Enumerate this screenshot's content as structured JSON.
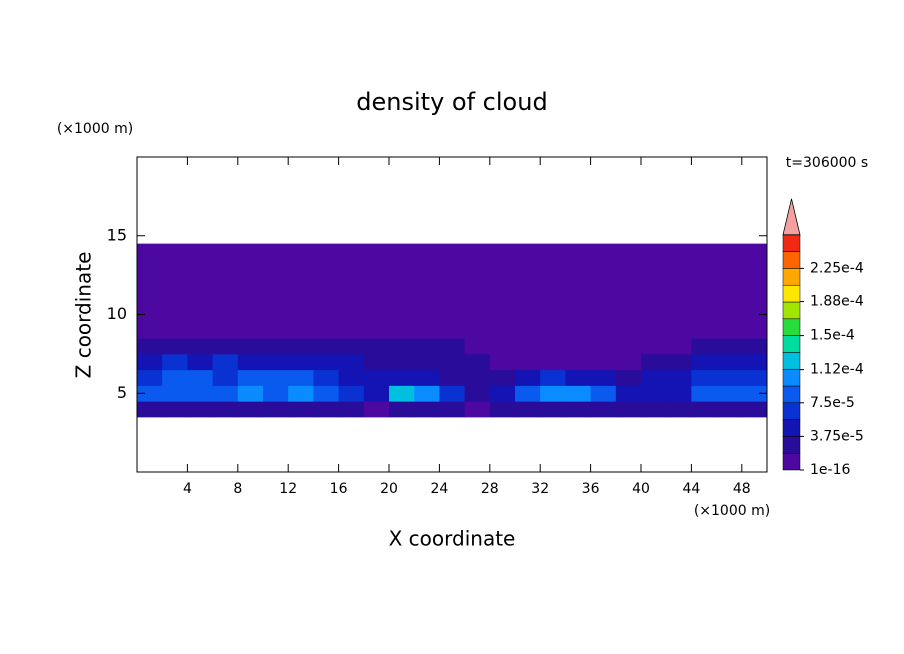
{
  "chart_data": {
    "type": "contour",
    "title": "density of cloud",
    "x_label": "X coordinate",
    "y_label": "Z coordinate",
    "x_unit": "(×1000 m)",
    "y_unit": "(×1000 m)",
    "time_label": "t=306000 s",
    "xlim": [
      0,
      50
    ],
    "ylim": [
      0,
      20
    ],
    "xticks": [
      4,
      8,
      12,
      16,
      20,
      24,
      28,
      32,
      36,
      40,
      44,
      48
    ],
    "yticks": [
      5,
      10,
      15
    ],
    "x": [
      1,
      3,
      5,
      7,
      9,
      11,
      13,
      15,
      17,
      19,
      21,
      23,
      25,
      27,
      29,
      31,
      33,
      35,
      37,
      39,
      41,
      43,
      45,
      47,
      49
    ],
    "z": [
      4,
      5,
      6,
      7,
      8,
      9,
      10,
      11,
      12,
      13,
      14
    ],
    "values": [
      [
        2.5e-05,
        2.5e-05,
        3e-05,
        2.5e-05,
        3e-05,
        3e-05,
        2.5e-05,
        2.5e-05,
        2e-05,
        1.5e-05,
        2.5e-05,
        2.5e-05,
        2e-05,
        1.5e-05,
        2e-05,
        2.5e-05,
        3e-05,
        2.5e-05,
        2.5e-05,
        2e-05,
        2e-05,
        2.5e-05,
        3e-05,
        2.5e-05,
        2.5e-05
      ],
      [
        8e-05,
        9e-05,
        8e-05,
        9e-05,
        0.0001,
        9e-05,
        0.000105,
        9e-05,
        6e-05,
        4e-05,
        0.000115,
        0.0001,
        6e-05,
        3e-05,
        4e-05,
        8e-05,
        9.5e-05,
        0.0001,
        8e-05,
        5e-05,
        4e-05,
        5e-05,
        9e-05,
        8e-05,
        8.5e-05
      ],
      [
        7e-05,
        8e-05,
        7.5e-05,
        7e-05,
        8e-05,
        8.5e-05,
        7.5e-05,
        6.5e-05,
        5e-05,
        4e-05,
        4.5e-05,
        4e-05,
        3.5e-05,
        3e-05,
        3e-05,
        5e-05,
        6e-05,
        5e-05,
        4e-05,
        3.5e-05,
        4e-05,
        5e-05,
        6.5e-05,
        6e-05,
        7e-05
      ],
      [
        5.5e-05,
        6e-05,
        5.5e-05,
        6e-05,
        5.5e-05,
        5e-05,
        5.5e-05,
        5e-05,
        4e-05,
        3.5e-05,
        3e-05,
        3e-05,
        2.5e-05,
        2e-05,
        1.5e-05,
        1.5e-05,
        1.5e-05,
        1.5e-05,
        1.5e-05,
        1.5e-05,
        2e-05,
        3e-05,
        4e-05,
        4.5e-05,
        5e-05
      ],
      [
        3e-05,
        3e-05,
        2.5e-05,
        3e-05,
        3e-05,
        2.5e-05,
        3e-05,
        3e-05,
        2.5e-05,
        2.5e-05,
        2.5e-05,
        2.5e-05,
        2e-05,
        1.5e-05,
        1e-05,
        1e-05,
        1e-05,
        1e-05,
        1e-05,
        1e-05,
        1e-05,
        1e-05,
        2.5e-05,
        3e-05,
        3e-05
      ],
      [
        1e-05,
        1e-05,
        1e-05,
        1e-05,
        1e-05,
        1e-05,
        1e-05,
        1e-05,
        1e-05,
        1e-05,
        1e-05,
        1e-05,
        1e-05,
        1e-05,
        1e-05,
        1e-05,
        1e-05,
        1e-05,
        1e-05,
        1e-05,
        1e-05,
        1e-05,
        1e-05,
        1e-05,
        1e-05
      ],
      [
        1e-05,
        1e-05,
        1e-05,
        1e-05,
        1e-05,
        1e-05,
        1e-05,
        1e-05,
        1e-05,
        1e-05,
        1e-05,
        1e-05,
        1e-05,
        1e-05,
        1e-05,
        1e-05,
        1e-05,
        1e-05,
        1e-05,
        1e-05,
        1e-05,
        1e-05,
        1e-05,
        1e-05,
        1e-05
      ],
      [
        1e-05,
        1e-05,
        1e-05,
        1e-05,
        1e-05,
        1e-05,
        1e-05,
        1e-05,
        1e-05,
        1e-05,
        1e-05,
        1e-05,
        1e-05,
        1e-05,
        1e-05,
        1e-05,
        1e-05,
        1e-05,
        1e-05,
        1e-05,
        1e-05,
        1e-05,
        1e-05,
        1e-05,
        1e-05
      ],
      [
        1e-05,
        1e-05,
        1e-05,
        1e-05,
        1e-05,
        1e-05,
        1e-05,
        1e-05,
        1e-05,
        1e-05,
        1e-05,
        1e-05,
        1e-05,
        1e-05,
        1e-05,
        1e-05,
        1e-05,
        1e-05,
        1e-05,
        1e-05,
        1e-05,
        1e-05,
        1e-05,
        1e-05,
        1e-05
      ],
      [
        1e-05,
        1e-05,
        1e-05,
        1e-05,
        1e-05,
        1e-05,
        1e-05,
        1e-05,
        1e-05,
        1e-05,
        1e-05,
        1e-05,
        1e-05,
        1e-05,
        1e-05,
        1e-05,
        1e-05,
        1e-05,
        1e-05,
        1e-05,
        1e-05,
        1e-05,
        1e-05,
        1e-05,
        1e-05
      ],
      [
        1e-05,
        1e-05,
        1e-05,
        1e-05,
        1e-05,
        1e-05,
        1e-05,
        1e-05,
        1e-05,
        1e-05,
        1e-05,
        1e-05,
        1e-05,
        1e-05,
        1e-05,
        1e-05,
        1e-05,
        1e-05,
        1e-05,
        1e-05,
        1e-05,
        1e-05,
        1e-05,
        1e-05,
        1e-05
      ]
    ],
    "levels": [
      1e-16,
      1.875e-05,
      3.75e-05,
      5.625e-05,
      7.5e-05,
      9.375e-05,
      0.0001125,
      0.00013125,
      0.00015,
      0.00016875,
      0.0001875,
      0.00020625,
      0.000225,
      0.00024375
    ],
    "colors": [
      "#4c08a0",
      "#2a0c9a",
      "#1414b4",
      "#0a32d2",
      "#0a5af0",
      "#0a8cff",
      "#00c0e0",
      "#00dca0",
      "#28dc3c",
      "#a0e600",
      "#ffe600",
      "#ffa800",
      "#ff6400",
      "#f02814"
    ],
    "extend_color": "#f5a0a0",
    "colorbar_ticks": [
      1e-16,
      {
        "value": 3.75e-05,
        "label": "3.75e-5"
      },
      {
        "value": 7.5e-05,
        "label": "7.5e-5"
      },
      {
        "value": 0.000112,
        "label": "1.12e-4"
      },
      {
        "value": 0.00015,
        "label": "1.5e-4"
      },
      {
        "value": 0.000188,
        "label": "1.88e-4"
      },
      {
        "value": 0.000225,
        "label": "2.25e-4"
      }
    ]
  }
}
